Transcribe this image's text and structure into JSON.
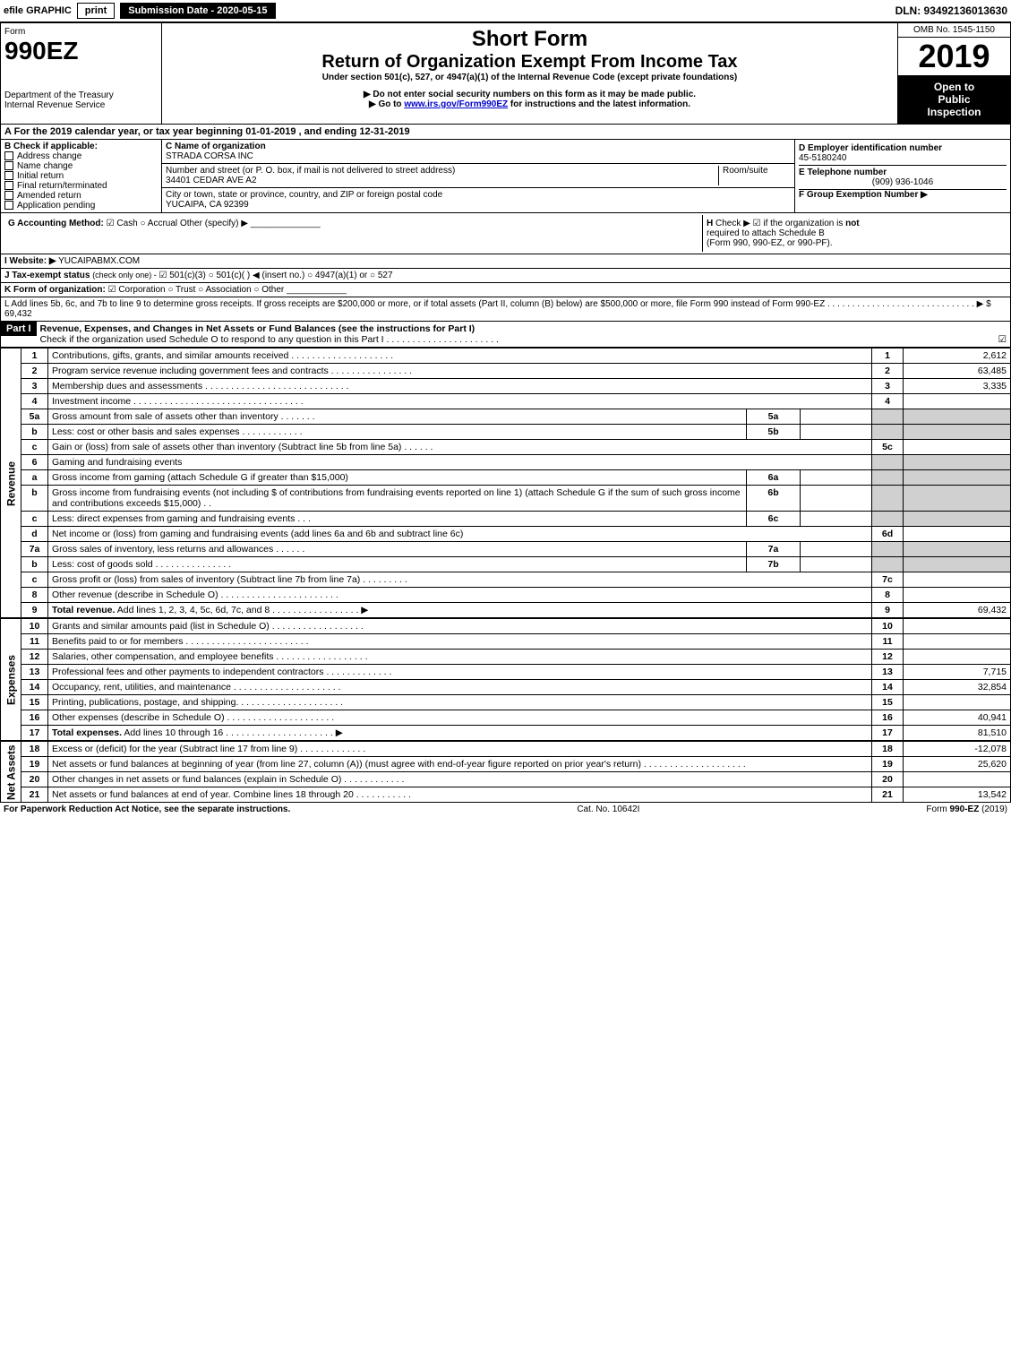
{
  "topbar": {
    "efile": "efile GRAPHIC",
    "print": "print",
    "submission": "Submission Date - 2020-05-15",
    "dln": "DLN: 93492136013630"
  },
  "header": {
    "form_word": "Form",
    "form_no": "990EZ",
    "short_form": "Short Form",
    "title": "Return of Organization Exempt From Income Tax",
    "subtitle": "Under section 501(c), 527, or 4947(a)(1) of the Internal Revenue Code (except private foundations)",
    "warn1": "▶ Do not enter social security numbers on this form as it may be made public.",
    "warn2_pre": "▶ Go to ",
    "warn2_link": "www.irs.gov/Form990EZ",
    "warn2_post": " for instructions and the latest information.",
    "omb": "OMB No. 1545-1150",
    "year": "2019",
    "open1": "Open to",
    "open2": "Public",
    "open3": "Inspection",
    "dept1": "Department of the Treasury",
    "dept2": "Internal Revenue Service"
  },
  "line_a_text": "For the 2019 calendar year, or tax year beginning 01-01-2019 , and ending 12-31-2019",
  "b": {
    "label": "B  Check if applicable:",
    "opts": [
      "Address change",
      "Name change",
      "Initial return",
      "Final return/terminated",
      "Amended return",
      "Application pending"
    ]
  },
  "c": {
    "label": "C Name of organization",
    "name": "STRADA CORSA INC",
    "street_label": "Number and street (or P. O. box, if mail is not delivered to street address)",
    "room_label": "Room/suite",
    "street": "34401 CEDAR AVE A2",
    "city_label": "City or town, state or province, country, and ZIP or foreign postal code",
    "city": "YUCAIPA, CA  92399"
  },
  "d": {
    "label": "D Employer identification number",
    "val": "45-5180240"
  },
  "e": {
    "label": "E Telephone number",
    "val": "(909) 936-1046"
  },
  "f": {
    "label": "F Group Exemption Number  ▶"
  },
  "g": {
    "label": "G Accounting Method:",
    "cash": "Cash",
    "accrual": "Accrual",
    "other": "Other (specify) ▶"
  },
  "h": {
    "text1": "Check ▶",
    "text2": "if the organization is ",
    "not": "not",
    "text3": "required to attach Schedule B",
    "text4": "(Form 990, 990-EZ, or 990-PF)."
  },
  "i": {
    "label": "I Website: ▶",
    "val": "YUCAIPABMX.COM"
  },
  "j": {
    "label": "J Tax-exempt status",
    "sub": "(check only one) -",
    "o1": "501(c)(3)",
    "o2": "501(c)( )",
    "o2b": "◀ (insert no.)",
    "o3": "4947(a)(1) or",
    "o4": "527"
  },
  "k": {
    "label": "K Form of organization:",
    "o1": "Corporation",
    "o2": "Trust",
    "o3": "Association",
    "o4": "Other"
  },
  "l": {
    "text": "L Add lines 5b, 6c, and 7b to line 9 to determine gross receipts. If gross receipts are $200,000 or more, or if total assets (Part II, column (B) below) are $500,000 or more, file Form 990 instead of Form 990-EZ .  .  .  .  .  .  .  .  .  .  .  .  .  .  .  .  .  .  .  .  .  .  .  .  .  .  .  .  .  .  ▶ $ 69,432"
  },
  "part1": {
    "label": "Part I",
    "title": "Revenue, Expenses, and Changes in Net Assets or Fund Balances (see the instructions for Part I)",
    "check_text": "Check if the organization used Schedule O to respond to any question in this Part I .  .  .  .  .  .  .  .  .  .  .  .  .  .  .  .  .  .  .  .  .  ."
  },
  "sections": {
    "revenue": "Revenue",
    "expenses": "Expenses",
    "netassets": "Net Assets"
  },
  "rows": [
    {
      "n": "1",
      "d": "Contributions, gifts, grants, and similar amounts received .  .  .  .  .  .  .  .  .  .  .  .  .  .  .  .  .  .  .  .",
      "ln": "1",
      "amt": "2,612"
    },
    {
      "n": "2",
      "d": "Program service revenue including government fees and contracts .  .  .  .  .  .  .  .  .  .  .  .  .  .  .  .",
      "ln": "2",
      "amt": "63,485"
    },
    {
      "n": "3",
      "d": "Membership dues and assessments .  .  .  .  .  .  .  .  .  .  .  .  .  .  .  .  .  .  .  .  .  .  .  .  .  .  .  .",
      "ln": "3",
      "amt": "3,335"
    },
    {
      "n": "4",
      "d": "Investment income .  .  .  .  .  .  .  .  .  .  .  .  .  .  .  .  .  .  .  .  .  .  .  .  .  .  .  .  .  .  .  .  .",
      "ln": "4",
      "amt": ""
    },
    {
      "n": "5a",
      "d": "Gross amount from sale of assets other than inventory .  .  .  .  .  .  .",
      "sub": "5a",
      "subval": "",
      "shade": true
    },
    {
      "n": "b",
      "d": "Less: cost or other basis and sales expenses .  .  .  .  .  .  .  .  .  .  .  .",
      "sub": "5b",
      "subval": "",
      "shade": true
    },
    {
      "n": "c",
      "d": "Gain or (loss) from sale of assets other than inventory (Subtract line 5b from line 5a) .  .  .  .  .  .",
      "ln": "5c",
      "amt": ""
    },
    {
      "n": "6",
      "d": "Gaming and fundraising events",
      "shade": true,
      "nosub": true
    },
    {
      "n": "a",
      "d": "Gross income from gaming (attach Schedule G if greater than $15,000)",
      "sub": "6a",
      "subval": "",
      "shade": true
    },
    {
      "n": "b",
      "d": "Gross income from fundraising events (not including $                   of contributions from fundraising events reported on line 1) (attach Schedule G if the sum of such gross income and contributions exceeds $15,000)    .  .",
      "sub": "6b",
      "subval": "",
      "shade": true
    },
    {
      "n": "c",
      "d": "Less: direct expenses from gaming and fundraising events    .  .  .",
      "sub": "6c",
      "subval": "",
      "shade": true
    },
    {
      "n": "d",
      "d": "Net income or (loss) from gaming and fundraising events (add lines 6a and 6b and subtract line 6c)",
      "ln": "6d",
      "amt": ""
    },
    {
      "n": "7a",
      "d": "Gross sales of inventory, less returns and allowances .  .  .  .  .  .",
      "sub": "7a",
      "subval": "",
      "shade": true
    },
    {
      "n": "b",
      "d": "Less: cost of goods sold        .  .  .  .  .  .  .  .  .  .  .  .  .  .  .",
      "sub": "7b",
      "subval": "",
      "shade": true
    },
    {
      "n": "c",
      "d": "Gross profit or (loss) from sales of inventory (Subtract line 7b from line 7a) .  .  .  .  .  .  .  .  .",
      "ln": "7c",
      "amt": ""
    },
    {
      "n": "8",
      "d": "Other revenue (describe in Schedule O) .  .  .  .  .  .  .  .  .  .  .  .  .  .  .  .  .  .  .  .  .  .  .",
      "ln": "8",
      "amt": ""
    },
    {
      "n": "9",
      "d": "Total revenue. Add lines 1, 2, 3, 4, 5c, 6d, 7c, and 8  .  .  .  .  .  .  .  .  .  .  .  .  .  .  .  .  .    ▶",
      "ln": "9",
      "amt": "69,432",
      "bold": true
    }
  ],
  "exp_rows": [
    {
      "n": "10",
      "d": "Grants and similar amounts paid (list in Schedule O) .  .  .  .  .  .  .  .  .  .  .  .  .  .  .  .  .  .",
      "ln": "10",
      "amt": ""
    },
    {
      "n": "11",
      "d": "Benefits paid to or for members    .  .  .  .  .  .  .  .  .  .  .  .  .  .  .  .  .  .  .  .  .  .  .  .",
      "ln": "11",
      "amt": ""
    },
    {
      "n": "12",
      "d": "Salaries, other compensation, and employee benefits .  .  .  .  .  .  .  .  .  .  .  .  .  .  .  .  .  .",
      "ln": "12",
      "amt": ""
    },
    {
      "n": "13",
      "d": "Professional fees and other payments to independent contractors .  .  .  .  .  .  .  .  .  .  .  .  .",
      "ln": "13",
      "amt": "7,715"
    },
    {
      "n": "14",
      "d": "Occupancy, rent, utilities, and maintenance .  .  .  .  .  .  .  .  .  .  .  .  .  .  .  .  .  .  .  .  .",
      "ln": "14",
      "amt": "32,854"
    },
    {
      "n": "15",
      "d": "Printing, publications, postage, and shipping.  .  .  .  .  .  .  .  .  .  .  .  .  .  .  .  .  .  .  .  .",
      "ln": "15",
      "amt": ""
    },
    {
      "n": "16",
      "d": "Other expenses (describe in Schedule O)    .  .  .  .  .  .  .  .  .  .  .  .  .  .  .  .  .  .  .  .  .",
      "ln": "16",
      "amt": "40,941"
    },
    {
      "n": "17",
      "d": "Total expenses. Add lines 10 through 16    .  .  .  .  .  .  .  .  .  .  .  .  .  .  .  .  .  .  .  .  .    ▶",
      "ln": "17",
      "amt": "81,510",
      "bold": true
    }
  ],
  "na_rows": [
    {
      "n": "18",
      "d": "Excess or (deficit) for the year (Subtract line 17 from line 9)       .  .  .  .  .  .  .  .  .  .  .  .  .",
      "ln": "18",
      "amt": "-12,078"
    },
    {
      "n": "19",
      "d": "Net assets or fund balances at beginning of year (from line 27, column (A)) (must agree with end-of-year figure reported on prior year's return) .  .  .  .  .  .  .  .  .  .  .  .  .  .  .  .  .  .  .  .",
      "ln": "19",
      "amt": "25,620"
    },
    {
      "n": "20",
      "d": "Other changes in net assets or fund balances (explain in Schedule O) .  .  .  .  .  .  .  .  .  .  .  .",
      "ln": "20",
      "amt": ""
    },
    {
      "n": "21",
      "d": "Net assets or fund balances at end of year. Combine lines 18 through 20 .  .  .  .  .  .  .  .  .  .  .",
      "ln": "21",
      "amt": "13,542"
    }
  ],
  "footer": {
    "left": "For Paperwork Reduction Act Notice, see the separate instructions.",
    "mid": "Cat. No. 10642I",
    "right": "Form 990-EZ (2019)"
  },
  "glyphs": {
    "check": "☑",
    "empty": "○",
    "H": "H"
  }
}
